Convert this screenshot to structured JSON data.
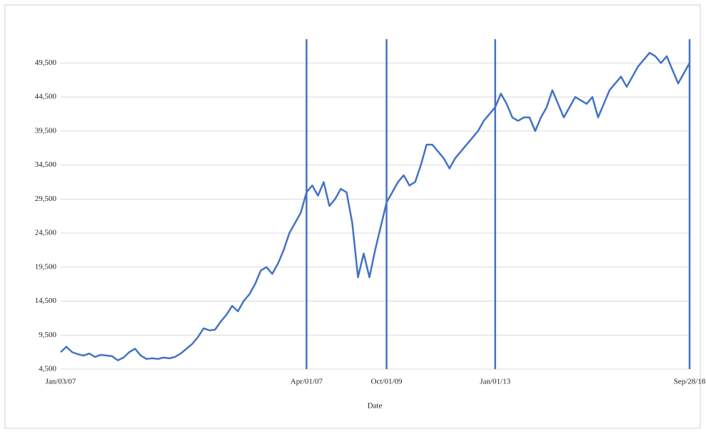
{
  "chart_data": {
    "type": "line",
    "x_label": "Date",
    "categories": [
      "Jan/03/07",
      null,
      null,
      null,
      null,
      null,
      null,
      null,
      null,
      null,
      null,
      null,
      null,
      null,
      null,
      null,
      null,
      null,
      null,
      null,
      null,
      null,
      null,
      null,
      null,
      null,
      null,
      null,
      null,
      null,
      null,
      null,
      null,
      null,
      null,
      null,
      null,
      null,
      null,
      null,
      null,
      null,
      null,
      "Apr/01/07",
      null,
      null,
      null,
      null,
      null,
      null,
      null,
      null,
      null,
      null,
      null,
      null,
      null,
      "Oct/01/09",
      null,
      null,
      null,
      null,
      null,
      null,
      null,
      null,
      null,
      null,
      null,
      null,
      null,
      null,
      null,
      null,
      null,
      null,
      "Jan/01/13",
      null,
      null,
      null,
      null,
      null,
      null,
      null,
      null,
      null,
      null,
      null,
      null,
      null,
      null,
      null,
      null,
      null,
      null,
      null,
      null,
      null,
      null,
      null,
      null,
      null,
      null,
      null,
      null,
      null,
      null,
      null,
      null,
      null,
      "Sep/28/18"
    ],
    "values": [
      7000,
      7800,
      7000,
      6700,
      6500,
      6800,
      6300,
      6600,
      6500,
      6400,
      5800,
      6200,
      7000,
      7500,
      6500,
      6000,
      6100,
      6000,
      6200,
      6100,
      6300,
      6800,
      7500,
      8200,
      9200,
      10500,
      10200,
      10300,
      11500,
      12500,
      13800,
      13000,
      14500,
      15500,
      17000,
      19000,
      19500,
      18500,
      20000,
      22000,
      24500,
      26000,
      27500,
      30500,
      31500,
      30000,
      32000,
      28500,
      29500,
      31000,
      30500,
      26000,
      18000,
      21500,
      18000,
      22000,
      25500,
      29000,
      30500,
      32000,
      33000,
      31500,
      32000,
      34500,
      37500,
      37500,
      36500,
      35500,
      34000,
      35500,
      36500,
      37500,
      38500,
      39500,
      41000,
      42000,
      43000,
      45000,
      43500,
      41500,
      41000,
      41500,
      41500,
      39500,
      41500,
      43000,
      45500,
      43500,
      41500,
      43000,
      44500,
      44000,
      43500,
      44500,
      41500,
      43500,
      45500,
      46500,
      47500,
      46000,
      47500,
      49000,
      50000,
      51000,
      50500,
      49500,
      50500,
      48500,
      46500,
      48000,
      49500
    ],
    "color": "#4472c4",
    "ylim": [
      4500,
      53000
    ],
    "yticks": [
      {
        "value": 4500,
        "label": "4,500"
      },
      {
        "value": 9500,
        "label": "9,500"
      },
      {
        "value": 14500,
        "label": "14,500"
      },
      {
        "value": 19500,
        "label": "19,500"
      },
      {
        "value": 24500,
        "label": "24,500"
      },
      {
        "value": 29500,
        "label": "29,500"
      },
      {
        "value": 34500,
        "label": "34,500"
      },
      {
        "value": 39500,
        "label": "39,500"
      },
      {
        "value": 44500,
        "label": "44,500"
      },
      {
        "value": 49500,
        "label": "49,500"
      }
    ],
    "grid": true,
    "marker_lines": true
  }
}
